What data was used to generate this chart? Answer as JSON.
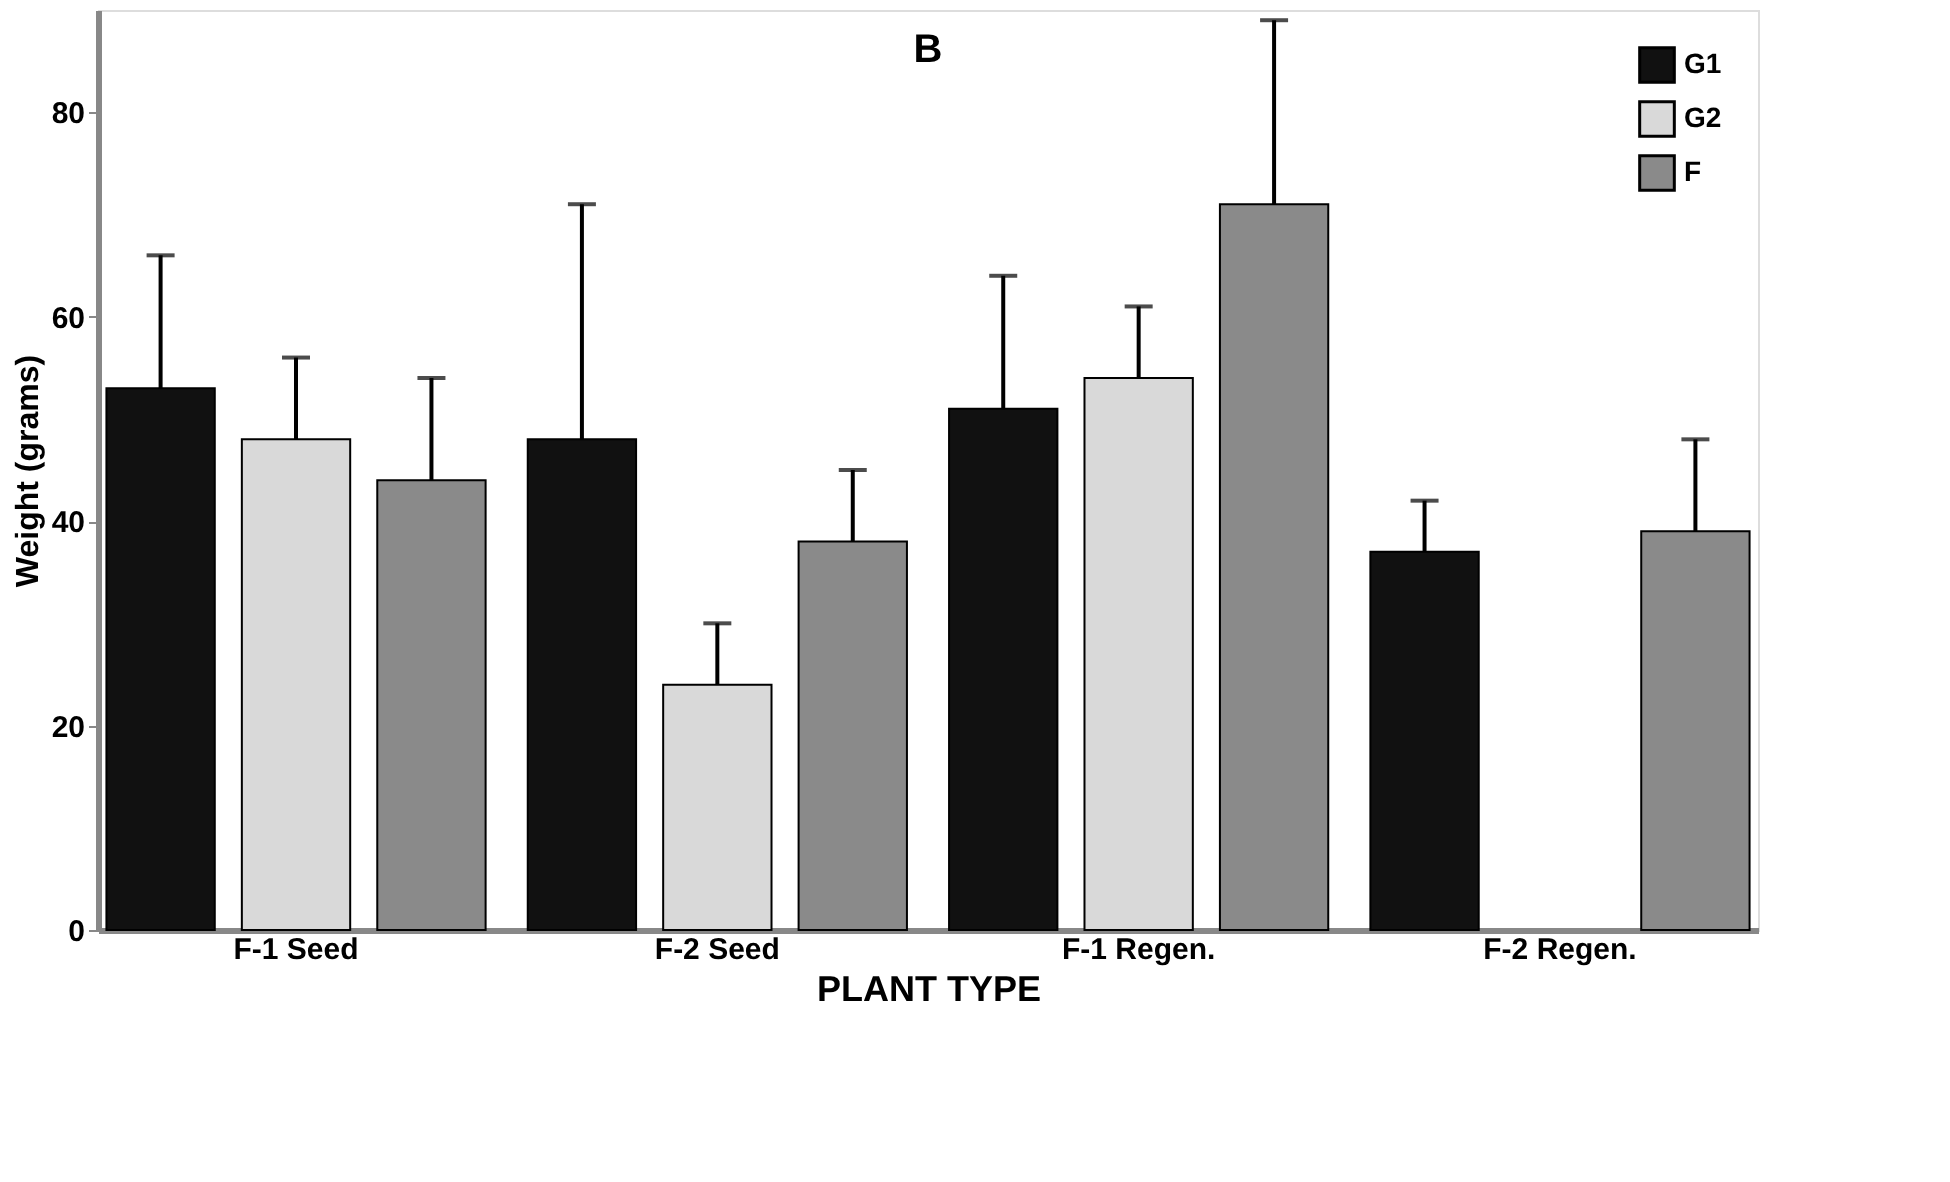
{
  "chart_data": {
    "type": "bar",
    "title": "B",
    "xlabel": "PLANT TYPE",
    "ylabel": "Weight (grams)",
    "categories": [
      "F-1 Seed",
      "F-2 Seed",
      "F-1 Regen.",
      "F-2 Regen."
    ],
    "series": [
      {
        "name": "G1",
        "color": "#111111",
        "values": [
          53,
          48,
          51,
          37
        ],
        "errors": [
          [
            53,
            66
          ],
          [
            48,
            71
          ],
          [
            51,
            64
          ],
          [
            37,
            42
          ]
        ]
      },
      {
        "name": "G2",
        "color": "#d9d9d9",
        "values": [
          48,
          24,
          54,
          null
        ],
        "errors": [
          [
            48,
            56
          ],
          [
            24,
            30
          ],
          [
            54,
            61
          ],
          null
        ]
      },
      {
        "name": "F",
        "color": "#8a8a8a",
        "values": [
          44,
          38,
          71,
          39
        ],
        "errors": [
          [
            44,
            54
          ],
          [
            38,
            45
          ],
          [
            71,
            89
          ],
          [
            39,
            48
          ]
        ]
      }
    ],
    "ylim": [
      0,
      90
    ],
    "yticks": [
      0,
      20,
      40,
      60,
      80
    ],
    "grid": false,
    "legend": "top right"
  }
}
